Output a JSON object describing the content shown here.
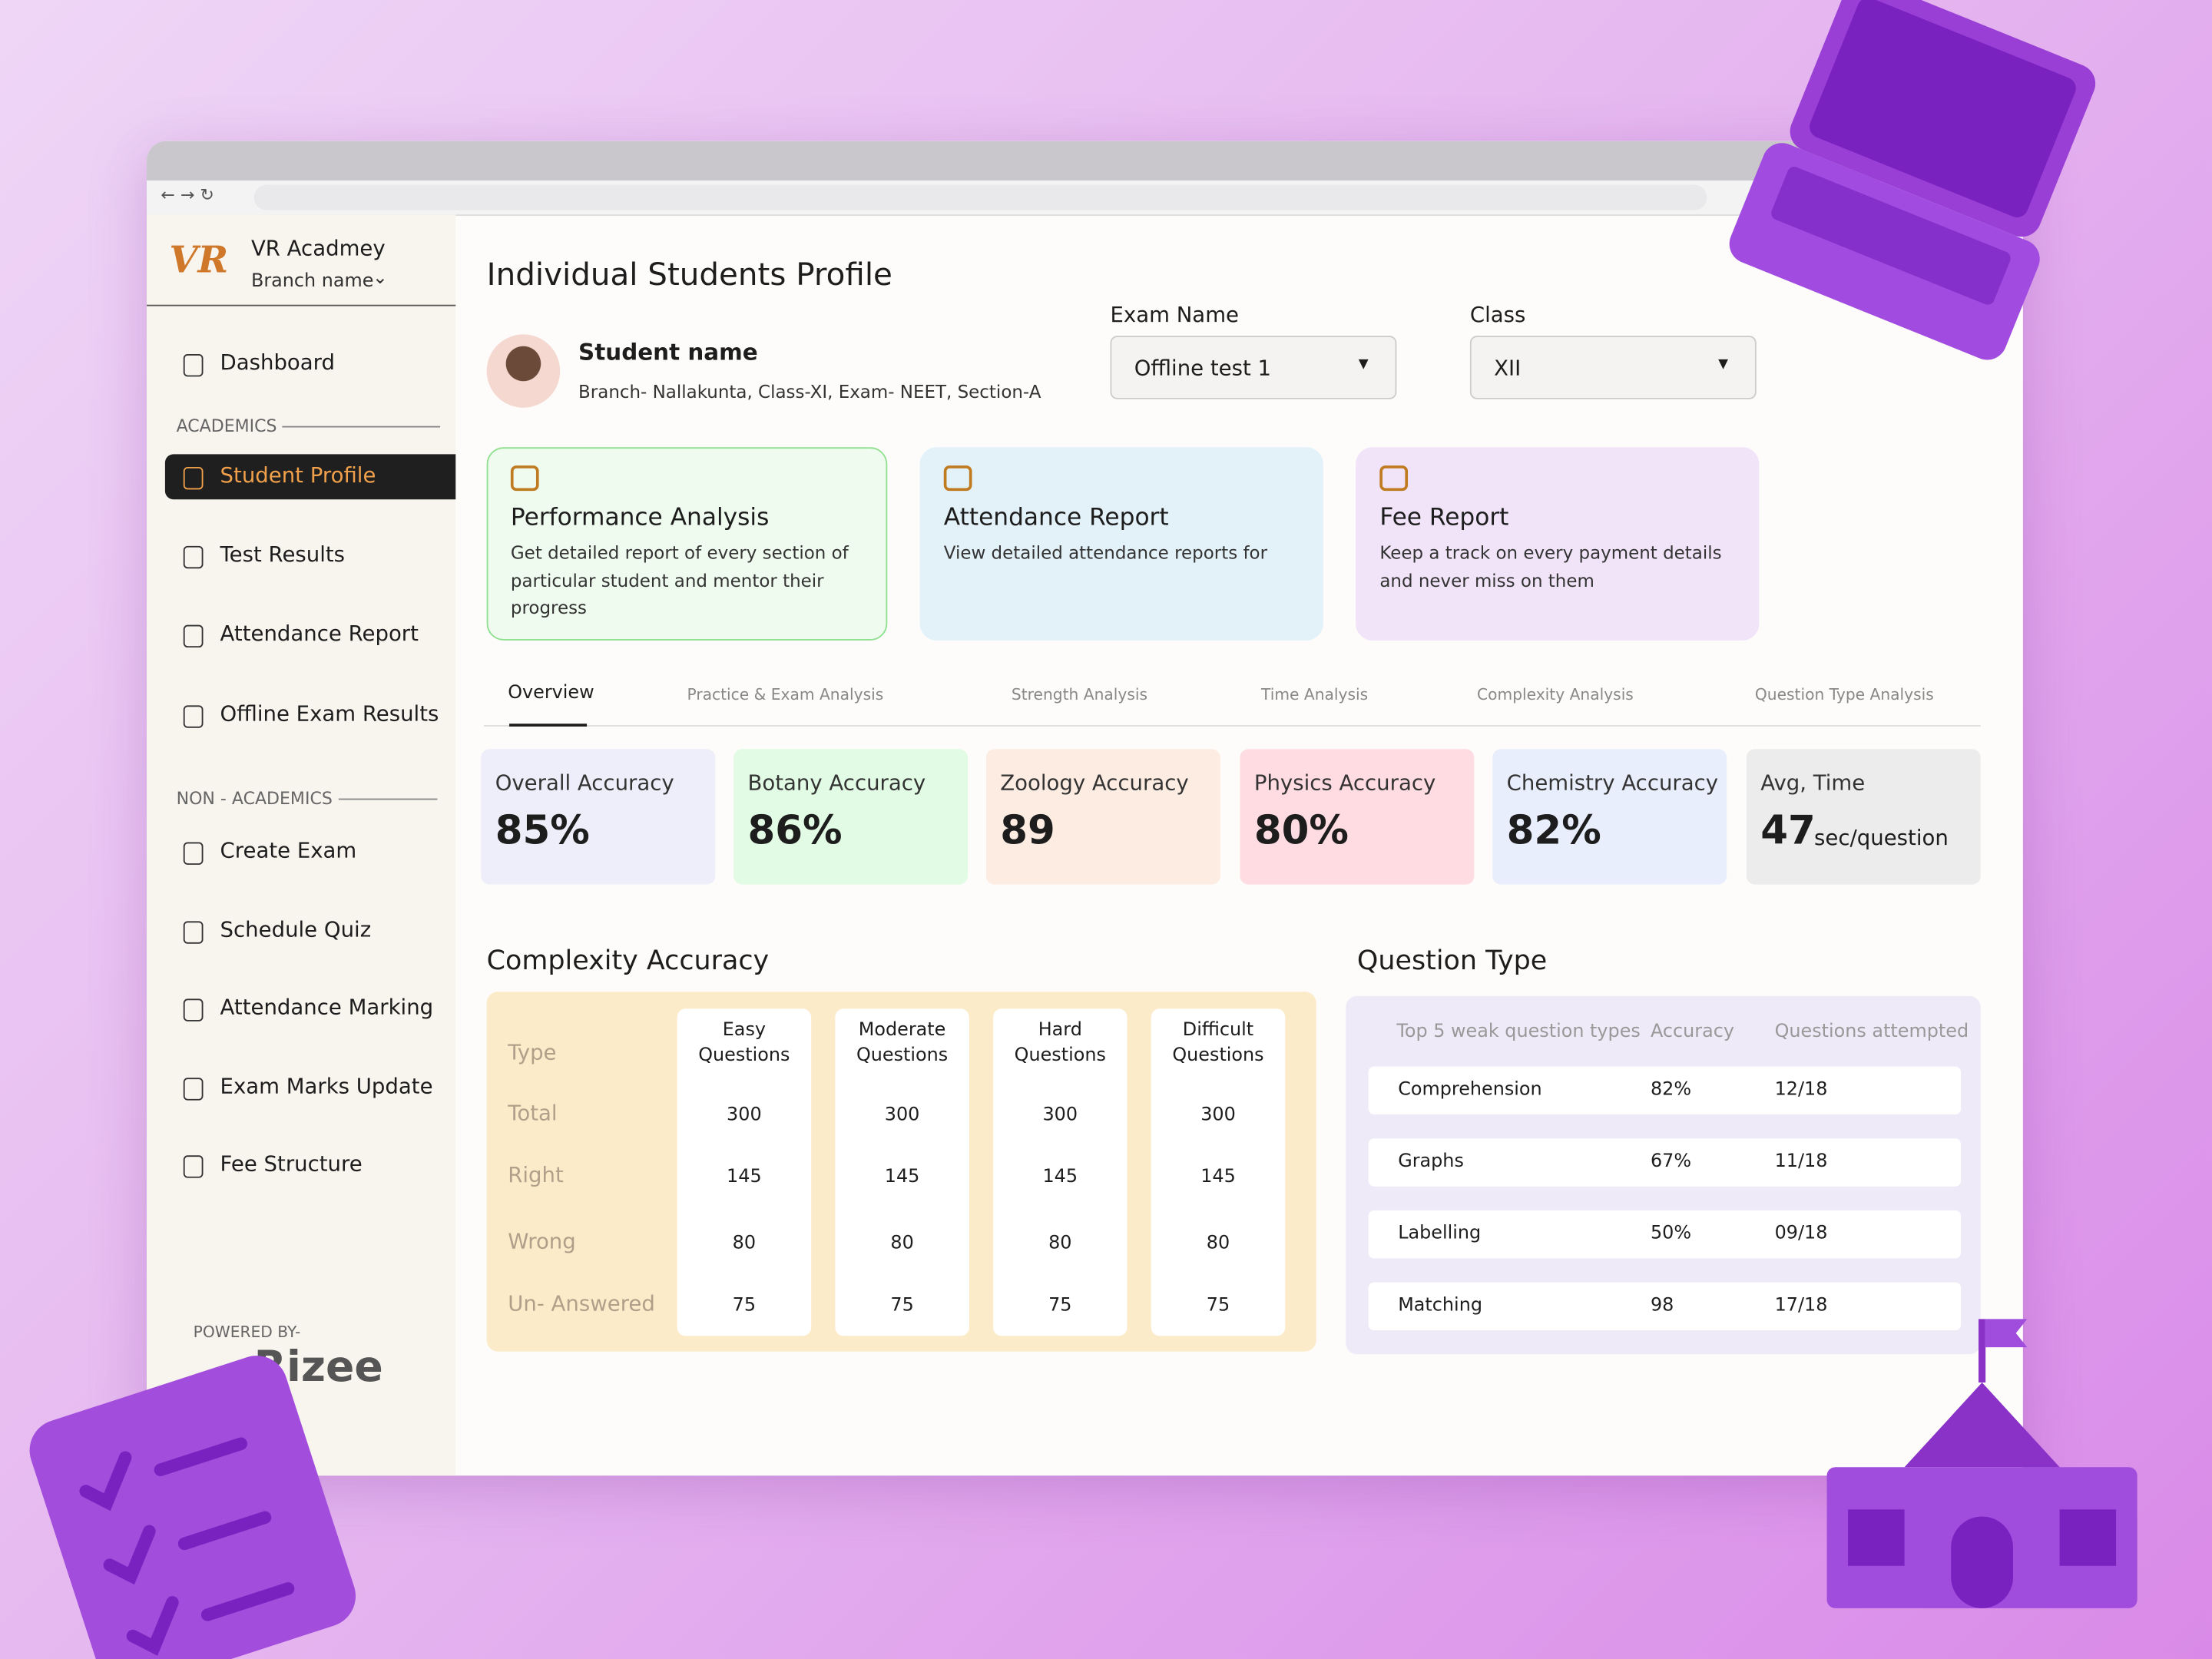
{
  "sidebar": {
    "logo": "VR",
    "brand": "VR Acadmey",
    "branch": "Branch name",
    "nav_top": [
      "Dashboard"
    ],
    "academics_label": "ACADEMICS",
    "academics": [
      "Student Profile",
      "Test Results",
      "Attendance Report",
      "Offline Exam Results"
    ],
    "non_academics_label": "NON - ACADEMICS",
    "non_academics": [
      "Create Exam",
      "Schedule Quiz",
      "Attendance Marking",
      "Exam Marks Update",
      "Fee Structure"
    ],
    "powered_by": "POWERED BY-",
    "powered_brand": "Rizee"
  },
  "header": {
    "title": "Individual Students Profile",
    "student_name": "Student name",
    "student_details": "Branch- Nallakunta, Class-XI, Exam- NEET, Section-A",
    "exam_label": "Exam Name",
    "exam_value": "Offline test 1",
    "class_label": "Class",
    "class_value": "XII"
  },
  "cards": [
    {
      "title": "Performance Analysis",
      "description": "Get detailed report of every section of particular student and mentor their progress"
    },
    {
      "title": "Attendance Report",
      "description": "View detailed attendance reports for"
    },
    {
      "title": "Fee Report",
      "description": "Keep a track on every payment details and never miss on them"
    }
  ],
  "tabs": [
    "Overview",
    "Practice & Exam Analysis",
    "Strength Analysis",
    "Time Analysis",
    "Complexity Analysis",
    "Question Type Analysis"
  ],
  "stats": [
    {
      "label": "Overall Accuracy",
      "value": "85%"
    },
    {
      "label": "Botany Accuracy",
      "value": "86%"
    },
    {
      "label": "Zoology Accuracy",
      "value": "89"
    },
    {
      "label": "Physics Accuracy",
      "value": "80%"
    },
    {
      "label": "Chemistry Accuracy",
      "value": "82%"
    },
    {
      "label": "Avg, Time",
      "value": "47",
      "unit": "sec/question"
    }
  ],
  "complexity": {
    "title": "Complexity Accuracy",
    "row_labels": [
      "Type",
      "Total",
      "Right",
      "Wrong",
      "Un- Answered"
    ],
    "columns": [
      {
        "header": [
          "Easy",
          "Questions"
        ],
        "values": [
          "300",
          "145",
          "80",
          "75"
        ]
      },
      {
        "header": [
          "Moderate",
          "Questions"
        ],
        "values": [
          "300",
          "145",
          "80",
          "75"
        ]
      },
      {
        "header": [
          "Hard",
          "Questions"
        ],
        "values": [
          "300",
          "145",
          "80",
          "75"
        ]
      },
      {
        "header": [
          "Difficult",
          "Questions"
        ],
        "values": [
          "300",
          "145",
          "80",
          "75"
        ]
      }
    ]
  },
  "question_type": {
    "title": "Question Type",
    "headers": [
      "Top 5 weak question types",
      "Accuracy",
      "Questions attempted"
    ],
    "rows": [
      [
        "Comprehension",
        "82%",
        "12/18"
      ],
      [
        "Graphs",
        "67%",
        "11/18"
      ],
      [
        "Labelling",
        "50%",
        "09/18"
      ],
      [
        "Matching",
        "98",
        "17/18"
      ]
    ]
  }
}
